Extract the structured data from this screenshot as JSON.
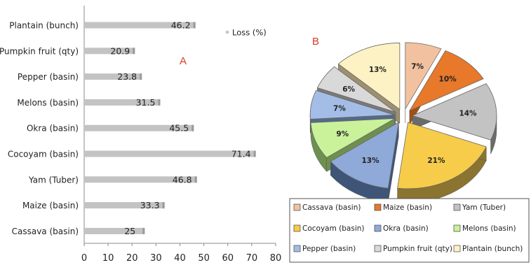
{
  "chart_data": [
    {
      "panel": "A",
      "type": "bar",
      "orientation": "horizontal",
      "categories": [
        "Plantain (bunch)",
        "Pumpkin fruit (qty)",
        "Pepper (basin)",
        "Melons (basin)",
        "Okra (basin)",
        "Cocoyam (basin)",
        "Yam (Tuber)",
        "Maize (basin)",
        "Cassava (basin)"
      ],
      "series": [
        {
          "name": "Loss (%)",
          "values": [
            46.2,
            20.9,
            23.8,
            31.5,
            45.5,
            71.4,
            46.8,
            33.3,
            25
          ]
        }
      ],
      "data_labels": [
        "46.2",
        "20.9",
        "23.8",
        "31.5",
        "45.5",
        "71.4",
        "46.8",
        "33.3",
        "25"
      ],
      "xlim": [
        0,
        80
      ],
      "xticks": [
        "0",
        "10",
        "20",
        "30",
        "40",
        "50",
        "60",
        "70",
        "80"
      ],
      "legend": "top-right",
      "grid": false,
      "colors": {
        "bar": "#c3c3c3",
        "bar_dark": "#9a9a9a"
      }
    },
    {
      "panel": "B",
      "type": "pie",
      "style": "3d-exploded",
      "categories": [
        "Cassava (basin)",
        "Maize (basin)",
        "Yam (Tuber)",
        "Cocoyam (basin)",
        "Okra (basin)",
        "Melons (basin)",
        "Pepper (basin)",
        "Pumpkin fruit (qty)",
        "Plantain (bunch)"
      ],
      "values": [
        7,
        10,
        14,
        21,
        13,
        9,
        7,
        6,
        13
      ],
      "data_labels": [
        "7%",
        "10%",
        "14%",
        "21%",
        "13%",
        "9%",
        "7%",
        "6%",
        "13%"
      ],
      "legend": "bottom",
      "colors": [
        "#f2c2a0",
        "#e8782a",
        "#c3c3c3",
        "#f6cc4a",
        "#8fa9d8",
        "#c9f29a",
        "#a4bde6",
        "#d9d9d9",
        "#fdf2c4"
      ],
      "dark_colors": [
        "#b8855f",
        "#a34f14",
        "#6b6b6b",
        "#8a7430",
        "#3e5578",
        "#6e8f4e",
        "#55698a",
        "#7a7a7a",
        "#9c9070"
      ]
    }
  ],
  "panel_labels": {
    "a": "A",
    "b": "B"
  }
}
